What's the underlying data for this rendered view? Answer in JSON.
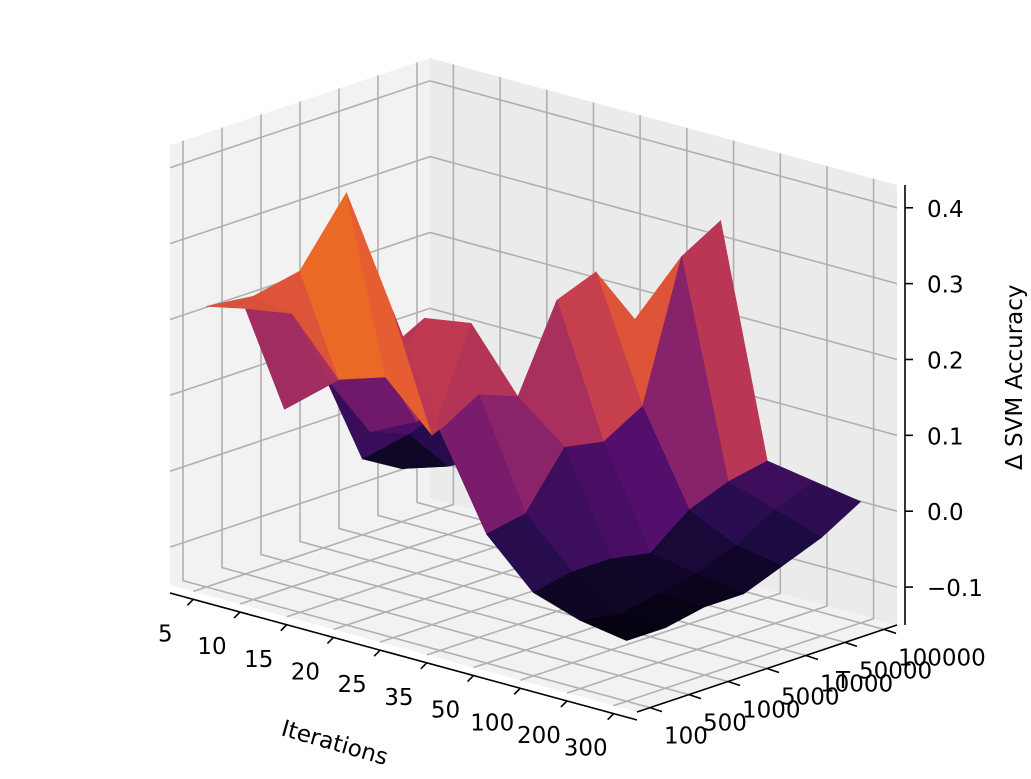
{
  "chart_data": {
    "type": "surface3d",
    "colormap": "inferno",
    "xlabel": "Iterations",
    "ylabel": "T",
    "zlabel": "Δ SVM Accuracy",
    "x_ticks": [
      "5",
      "10",
      "15",
      "20",
      "25",
      "35",
      "50",
      "100",
      "200",
      "300"
    ],
    "y_ticks": [
      "100",
      "500",
      "1000",
      "5000",
      "10000",
      "50000",
      "100000"
    ],
    "z_ticks": [
      "−0.1",
      "0.0",
      "0.1",
      "0.2",
      "0.3",
      "0.4"
    ],
    "zlim": [
      -0.15,
      0.43
    ],
    "grid": true,
    "z_values": [
      [
        0.22,
        0.25,
        0.3,
        0.42,
        0.28,
        0.14,
        0.02,
        -0.04,
        -0.06,
        -0.07
      ],
      [
        0.2,
        0.21,
        0.14,
        0.16,
        0.1,
        0.17,
        0.03,
        -0.03,
        -0.07,
        -0.07
      ],
      [
        0.05,
        0.1,
        0.15,
        0.22,
        0.23,
        0.15,
        0.1,
        -0.03,
        -0.06,
        -0.06
      ],
      [
        0.08,
        0.02,
        0.05,
        0.15,
        0.07,
        0.26,
        0.09,
        -0.04,
        -0.05,
        -0.06
      ],
      [
        -0.05,
        0.0,
        0.06,
        0.03,
        0.1,
        0.28,
        0.12,
        0.0,
        -0.03,
        -0.04
      ],
      [
        -0.08,
        -0.06,
        -0.03,
        0.02,
        0.0,
        0.2,
        0.3,
        0.02,
        0.0,
        -0.02
      ],
      [
        -0.03,
        -0.05,
        -0.04,
        0.0,
        0.03,
        0.06,
        0.33,
        0.03,
        0.02,
        0.01
      ]
    ]
  }
}
